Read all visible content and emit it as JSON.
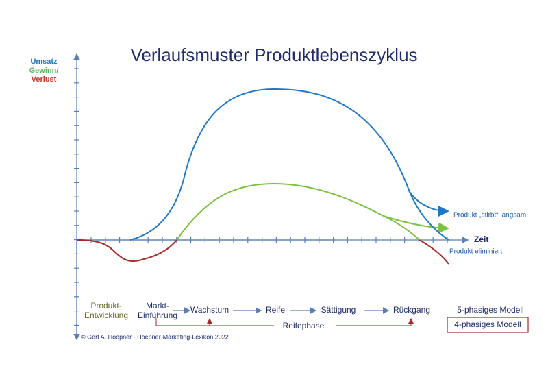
{
  "title": "Verlaufsmuster Produktlebenszyklus",
  "y_axis_label": {
    "line1": "Umsatz",
    "line2": "Gewinn/",
    "line3": "Verlust"
  },
  "x_axis_label": "Zeit",
  "annotations": {
    "slow_decline": "Produkt „stirbt“ langsam",
    "eliminated": "Produkt eliminiert"
  },
  "five_phase_model": {
    "phases": [
      [
        "Produkt-",
        "Entwicklung"
      ],
      [
        "Markt-",
        "Einführung"
      ],
      [
        "Wachstum"
      ],
      [
        "Reife"
      ],
      [
        "Sättigung"
      ],
      [
        "Rückgang"
      ]
    ],
    "label": "5-phasiges Modell"
  },
  "four_phase_model": {
    "phase": "Reifephase",
    "label": "4-phasiges Modell"
  },
  "copyright": "© Gert A. Hoepner - Hoepner-Marketing-Lexikon 2022"
}
